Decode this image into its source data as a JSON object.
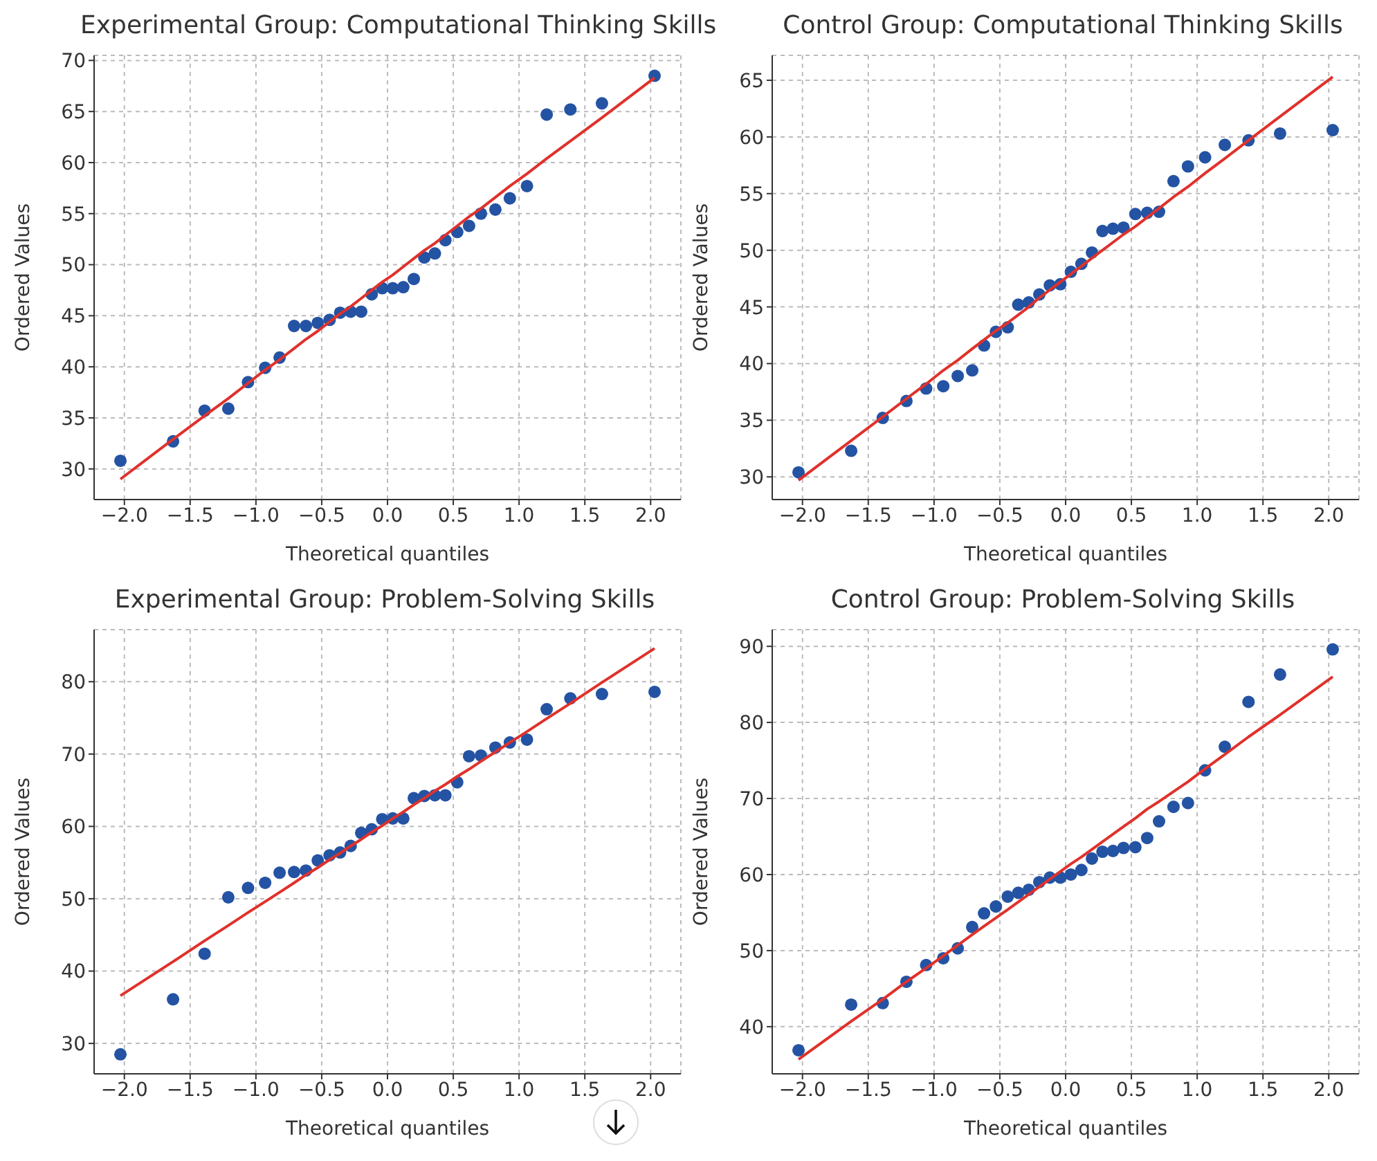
{
  "chart_data": [
    {
      "type": "scatter",
      "title": "Experimental Group: Computational Thinking Skills",
      "xlabel": "Theoretical quantiles",
      "ylabel": "Ordered Values",
      "grid": true,
      "marker": "circle",
      "x": [
        -2.03,
        -1.63,
        -1.39,
        -1.21,
        -1.06,
        -0.93,
        -0.82,
        -0.71,
        -0.62,
        -0.53,
        -0.44,
        -0.36,
        -0.28,
        -0.2,
        -0.12,
        -0.04,
        0.04,
        0.12,
        0.2,
        0.28,
        0.36,
        0.44,
        0.53,
        0.62,
        0.71,
        0.82,
        0.93,
        1.06,
        1.21,
        1.39,
        1.63,
        2.03
      ],
      "xlim": [
        -2.23,
        2.23
      ],
      "xticks": [
        {
          "value": -2,
          "label": "−2.0"
        },
        {
          "value": -1.5,
          "label": "−1.5"
        },
        {
          "value": -1,
          "label": "−1.0"
        },
        {
          "value": -0.5,
          "label": "−0.5"
        },
        {
          "value": 0,
          "label": "0.0"
        },
        {
          "value": 0.5,
          "label": "0.5"
        },
        {
          "value": 1,
          "label": "1.0"
        },
        {
          "value": 1.5,
          "label": "1.5"
        },
        {
          "value": 2,
          "label": "2.0"
        }
      ],
      "ylim": [
        27,
        70.5
      ],
      "yticks": [
        30,
        35,
        40,
        45,
        50,
        55,
        60,
        65,
        70
      ],
      "series": [
        {
          "color": "#2453a3",
          "values": [
            30.8,
            32.7,
            35.7,
            35.9,
            38.5,
            39.9,
            40.9,
            44.0,
            44.0,
            44.3,
            44.6,
            45.3,
            45.4,
            45.4,
            47.1,
            47.7,
            47.7,
            47.8,
            48.6,
            50.7,
            51.1,
            52.4,
            53.2,
            53.8,
            55.0,
            55.4,
            56.5,
            57.7,
            64.7,
            65.2,
            65.8,
            68.5
          ]
        },
        {
          "type": "line",
          "marker": "none",
          "color": "#e0312b",
          "values": [
            29.0,
            32.9,
            35.2,
            36.9,
            38.4,
            39.7,
            40.7,
            41.8,
            42.7,
            43.5,
            44.4,
            45.2,
            45.9,
            46.7,
            47.5,
            48.3,
            49.0,
            49.8,
            50.6,
            51.4,
            52.1,
            52.9,
            53.8,
            54.7,
            55.5,
            56.6,
            57.7,
            58.9,
            60.4,
            62.1,
            64.4,
            68.3
          ]
        }
      ]
    },
    {
      "type": "scatter",
      "title": "Control Group: Computational Thinking Skills",
      "xlabel": "Theoretical quantiles",
      "ylabel": "Ordered Values",
      "grid": true,
      "marker": "circle",
      "x": [
        -2.03,
        -1.63,
        -1.39,
        -1.21,
        -1.06,
        -0.93,
        -0.82,
        -0.71,
        -0.62,
        -0.53,
        -0.44,
        -0.36,
        -0.28,
        -0.2,
        -0.12,
        -0.04,
        0.04,
        0.12,
        0.2,
        0.28,
        0.36,
        0.44,
        0.53,
        0.62,
        0.71,
        0.82,
        0.93,
        1.06,
        1.21,
        1.39,
        1.63,
        2.03
      ],
      "xlim": [
        -2.23,
        2.23
      ],
      "xticks": [
        {
          "value": -2,
          "label": "−2.0"
        },
        {
          "value": -1.5,
          "label": "−1.5"
        },
        {
          "value": -1,
          "label": "−1.0"
        },
        {
          "value": -0.5,
          "label": "−0.5"
        },
        {
          "value": 0,
          "label": "0.0"
        },
        {
          "value": 0.5,
          "label": "0.5"
        },
        {
          "value": 1,
          "label": "1.0"
        },
        {
          "value": 1.5,
          "label": "1.5"
        },
        {
          "value": 2,
          "label": "2.0"
        }
      ],
      "ylim": [
        28,
        67.2
      ],
      "yticks": [
        30,
        35,
        40,
        45,
        50,
        55,
        60,
        65
      ],
      "series": [
        {
          "color": "#2453a3",
          "values": [
            30.4,
            32.3,
            35.2,
            36.7,
            37.8,
            38.0,
            38.9,
            39.4,
            41.6,
            42.8,
            43.2,
            45.2,
            45.4,
            46.1,
            46.9,
            47.0,
            48.1,
            48.8,
            49.8,
            51.7,
            51.9,
            52.0,
            53.2,
            53.3,
            53.4,
            56.1,
            57.4,
            58.2,
            59.3,
            59.7,
            60.3,
            60.6
          ]
        },
        {
          "type": "line",
          "marker": "none",
          "color": "#e0312b",
          "values": [
            29.7,
            33.2,
            35.3,
            36.9,
            38.2,
            39.4,
            40.3,
            41.3,
            42.1,
            42.9,
            43.6,
            44.3,
            45.0,
            45.8,
            46.5,
            47.2,
            47.9,
            48.6,
            49.3,
            50.0,
            50.7,
            51.4,
            52.1,
            52.9,
            53.7,
            54.7,
            55.6,
            56.8,
            58.1,
            59.7,
            61.8,
            65.3
          ]
        }
      ]
    },
    {
      "type": "scatter",
      "title": "Experimental Group: Problem-Solving Skills",
      "xlabel": "Theoretical quantiles",
      "ylabel": "Ordered Values",
      "grid": true,
      "marker": "circle",
      "x": [
        -2.03,
        -1.63,
        -1.39,
        -1.21,
        -1.06,
        -0.93,
        -0.82,
        -0.71,
        -0.62,
        -0.53,
        -0.44,
        -0.36,
        -0.28,
        -0.2,
        -0.12,
        -0.04,
        0.04,
        0.12,
        0.2,
        0.28,
        0.36,
        0.44,
        0.53,
        0.62,
        0.71,
        0.82,
        0.93,
        1.06,
        1.21,
        1.39,
        1.63,
        2.03
      ],
      "xlim": [
        -2.23,
        2.23
      ],
      "xticks": [
        {
          "value": -2,
          "label": "−2.0"
        },
        {
          "value": -1.5,
          "label": "−1.5"
        },
        {
          "value": -1,
          "label": "−1.0"
        },
        {
          "value": -0.5,
          "label": "−0.5"
        },
        {
          "value": 0,
          "label": "0.0"
        },
        {
          "value": 0.5,
          "label": "0.5"
        },
        {
          "value": 1,
          "label": "1.0"
        },
        {
          "value": 1.5,
          "label": "1.5"
        },
        {
          "value": 2,
          "label": "2.0"
        }
      ],
      "ylim": [
        25.8,
        87.2
      ],
      "yticks": [
        30,
        40,
        50,
        60,
        70,
        80
      ],
      "series": [
        {
          "color": "#2453a3",
          "values": [
            28.5,
            36.1,
            42.4,
            50.2,
            51.5,
            52.2,
            53.6,
            53.7,
            53.9,
            55.3,
            56.0,
            56.4,
            57.3,
            59.1,
            59.6,
            61.0,
            61.1,
            61.1,
            63.9,
            64.2,
            64.3,
            64.3,
            66.1,
            69.7,
            69.8,
            70.9,
            71.6,
            72.0,
            76.2,
            77.7,
            78.3,
            78.6
          ]
        },
        {
          "type": "line",
          "marker": "none",
          "color": "#e0312b",
          "values": [
            36.6,
            41.3,
            44.2,
            46.3,
            48.1,
            49.6,
            50.9,
            52.2,
            53.3,
            54.3,
            55.4,
            56.3,
            57.3,
            58.2,
            59.2,
            60.1,
            61.1,
            62.0,
            63.0,
            63.9,
            64.9,
            65.8,
            66.9,
            67.9,
            69.0,
            70.3,
            71.6,
            73.1,
            74.9,
            77.0,
            79.9,
            84.6
          ]
        }
      ]
    },
    {
      "type": "scatter",
      "title": "Control Group: Problem-Solving Skills",
      "xlabel": "Theoretical quantiles",
      "ylabel": "Ordered Values",
      "grid": true,
      "marker": "circle",
      "x": [
        -2.03,
        -1.63,
        -1.39,
        -1.21,
        -1.06,
        -0.93,
        -0.82,
        -0.71,
        -0.62,
        -0.53,
        -0.44,
        -0.36,
        -0.28,
        -0.2,
        -0.12,
        -0.04,
        0.04,
        0.12,
        0.2,
        0.28,
        0.36,
        0.44,
        0.53,
        0.62,
        0.71,
        0.82,
        0.93,
        1.06,
        1.21,
        1.39,
        1.63,
        2.03
      ],
      "xlim": [
        -2.23,
        2.23
      ],
      "xticks": [
        {
          "value": -2,
          "label": "−2.0"
        },
        {
          "value": -1.5,
          "label": "−1.5"
        },
        {
          "value": -1,
          "label": "−1.0"
        },
        {
          "value": -0.5,
          "label": "−0.5"
        },
        {
          "value": 0,
          "label": "0.0"
        },
        {
          "value": 0.5,
          "label": "0.5"
        },
        {
          "value": 1,
          "label": "1.0"
        },
        {
          "value": 1.5,
          "label": "1.5"
        },
        {
          "value": 2,
          "label": "2.0"
        }
      ],
      "ylim": [
        33.8,
        92.2
      ],
      "yticks": [
        40,
        50,
        60,
        70,
        80,
        90
      ],
      "series": [
        {
          "color": "#2453a3",
          "values": [
            36.9,
            42.9,
            43.1,
            45.9,
            48.1,
            49.0,
            50.3,
            53.1,
            54.9,
            55.8,
            57.1,
            57.6,
            58.0,
            59.0,
            59.6,
            59.6,
            60.0,
            60.6,
            62.1,
            63.0,
            63.1,
            63.5,
            63.6,
            64.8,
            67.0,
            68.9,
            69.4,
            73.7,
            76.8,
            82.7,
            86.3,
            89.6
          ]
        },
        {
          "type": "line",
          "marker": "none",
          "color": "#e0312b",
          "values": [
            35.7,
            40.7,
            43.6,
            45.9,
            47.7,
            49.3,
            50.7,
            52.1,
            53.2,
            54.3,
            55.4,
            56.4,
            57.4,
            58.4,
            59.4,
            60.4,
            61.4,
            62.3,
            63.3,
            64.3,
            65.3,
            66.3,
            67.4,
            68.6,
            69.6,
            70.9,
            72.2,
            73.9,
            75.8,
            78.1,
            81.0,
            86.0
          ]
        }
      ]
    }
  ]
}
